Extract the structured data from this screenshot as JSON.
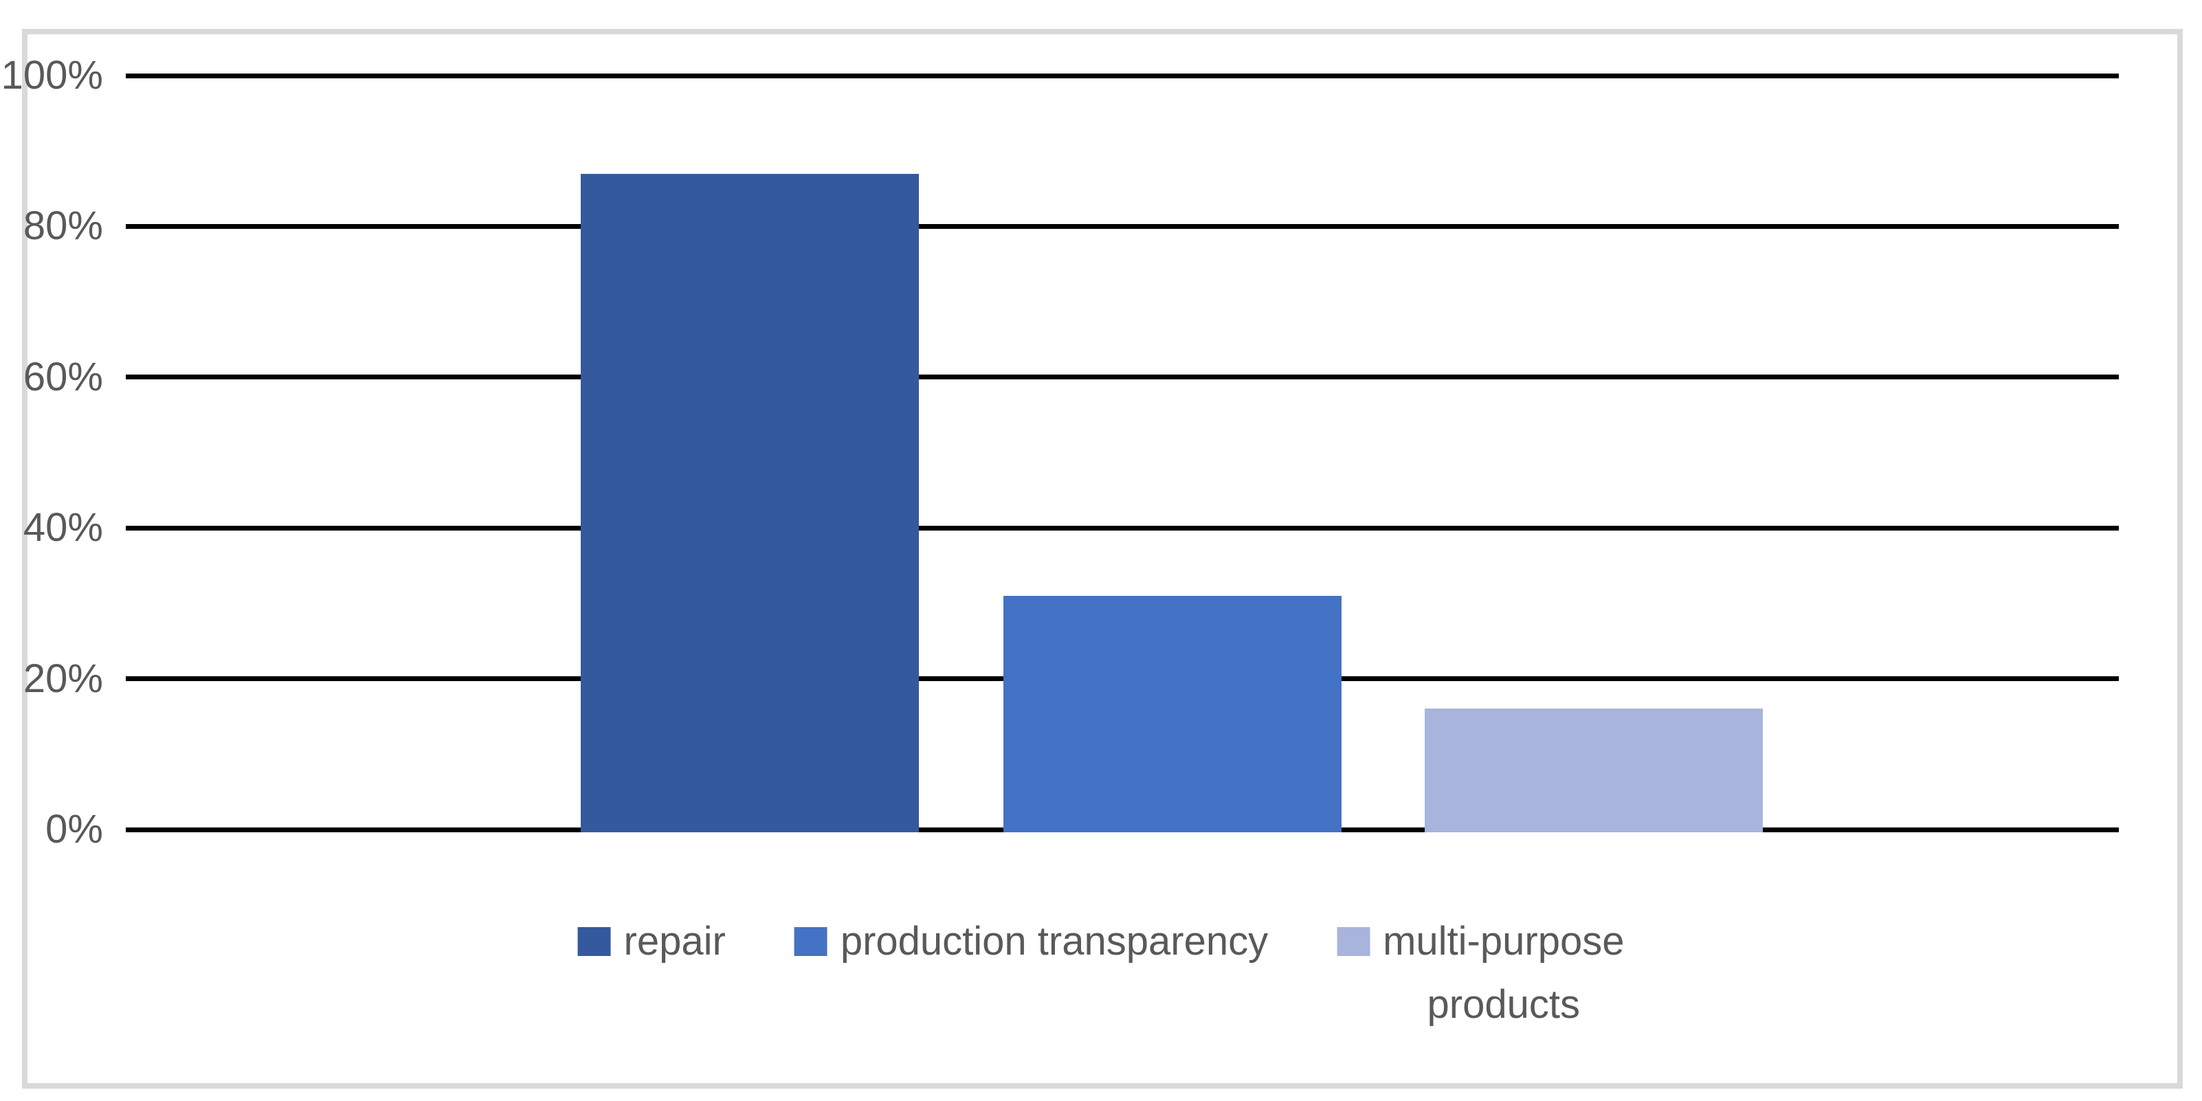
{
  "chart_data": {
    "type": "bar",
    "title": "",
    "xlabel": "",
    "ylabel": "",
    "categories": [
      "repair",
      "production transparency",
      "multi-purpose products"
    ],
    "values": [
      87,
      31,
      16
    ],
    "unit": "%",
    "ylim": [
      0,
      100
    ],
    "yticks": [
      0,
      20,
      40,
      60,
      80,
      100
    ],
    "ytick_labels": [
      "0%",
      "20%",
      "40%",
      "60%",
      "80%",
      "100%"
    ],
    "grid": "horizontal",
    "gridline_color": "#000000",
    "legend_position": "bottom",
    "series": [
      {
        "name": "repair",
        "value": 87,
        "color": "#35599E"
      },
      {
        "name": "production transparency",
        "value": 31,
        "color": "#4472C4"
      },
      {
        "name": "multi-purpose products",
        "value": 16,
        "color": "#A8B4DB"
      }
    ]
  },
  "legend": {
    "items": [
      {
        "label": "repair",
        "label_lines": [
          "repair"
        ],
        "color": "#35599E"
      },
      {
        "label": "production transparency",
        "label_lines": [
          "production transparency"
        ],
        "color": "#4472C4"
      },
      {
        "label": "multi-purpose products",
        "label_lines": [
          "multi-purpose",
          "products"
        ],
        "color": "#A8B4DB"
      }
    ]
  },
  "colors": {
    "background": "#FFFFFF",
    "border": "#D9D9D9",
    "gridline": "#000000",
    "axis_label_text": "#595959",
    "legend_text": "#595959"
  }
}
